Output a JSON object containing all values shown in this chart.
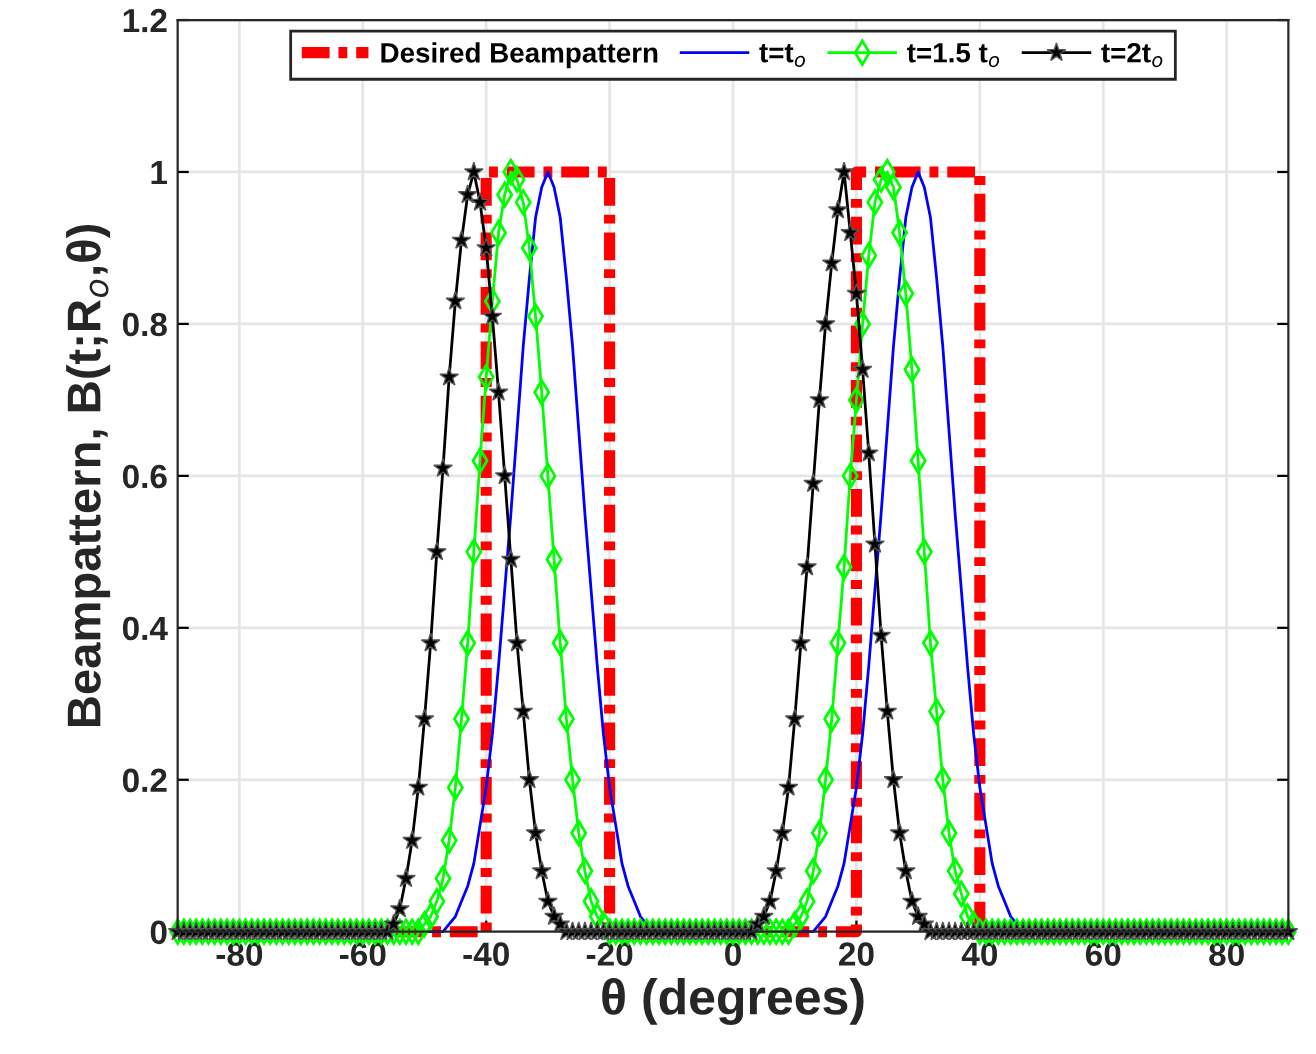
{
  "chart_data": {
    "type": "line",
    "xlabel": "θ (degrees)",
    "ylabel": "Beampattern, B(t;R$_{o}$,θ)",
    "xlim": [
      -90,
      90
    ],
    "ylim": [
      0,
      1.2
    ],
    "xticks": [
      -80,
      -60,
      -40,
      -20,
      0,
      20,
      40,
      60,
      80
    ],
    "yticks": [
      0,
      {
        "value": 0.2,
        "label": "0.2"
      },
      {
        "value": 0.4,
        "label": "0.4"
      },
      {
        "value": 0.6,
        "label": "0.6"
      },
      {
        "value": 0.8,
        "label": "0.8"
      },
      1,
      {
        "value": 1.2,
        "label": "1.2"
      }
    ],
    "grid": true,
    "legend": "top",
    "x": [
      -90,
      -89,
      -88,
      -87,
      -86,
      -85,
      -84,
      -83,
      -82,
      -81,
      -80,
      -79,
      -78,
      -77,
      -76,
      -75,
      -74,
      -73,
      -72,
      -71,
      -70,
      -69,
      -68,
      -67,
      -66,
      -65,
      -64,
      -63,
      -62,
      -61,
      -60,
      -59,
      -58,
      -57,
      -56,
      -55,
      -54,
      -53,
      -52,
      -51,
      -50,
      -49,
      -48,
      -47,
      -46,
      -45,
      -44,
      -43,
      -42,
      -41,
      -40,
      -39,
      -38,
      -37,
      -36,
      -35,
      -34,
      -33,
      -32,
      -31,
      -30,
      -29,
      -28,
      -27,
      -26,
      -25,
      -24,
      -23,
      -22,
      -21,
      -20,
      -19,
      -18,
      -17,
      -16,
      -15,
      -14,
      -13,
      -12,
      -11,
      -10,
      -9,
      -8,
      -7,
      -6,
      -5,
      -4,
      -3,
      -2,
      -1,
      0,
      1,
      2,
      3,
      4,
      5,
      6,
      7,
      8,
      9,
      10,
      11,
      12,
      13,
      14,
      15,
      16,
      17,
      18,
      19,
      20,
      21,
      22,
      23,
      24,
      25,
      26,
      27,
      28,
      29,
      30,
      31,
      32,
      33,
      34,
      35,
      36,
      37,
      38,
      39,
      40,
      41,
      42,
      43,
      44,
      45,
      46,
      47,
      48,
      49,
      50,
      51,
      52,
      53,
      54,
      55,
      56,
      57,
      58,
      59,
      60,
      61,
      62,
      63,
      64,
      65,
      66,
      67,
      68,
      69,
      70,
      71,
      72,
      73,
      74,
      75,
      76,
      77,
      78,
      79,
      80,
      81,
      82,
      83,
      84,
      85,
      86,
      87,
      88,
      89,
      90
    ],
    "series": [
      {
        "name": "Desired Beampattern",
        "color": "#ff0000",
        "line_style": "dashed",
        "marker": "none",
        "x": [
          -90,
          -40,
          -40,
          -20,
          -20,
          20,
          20,
          40,
          40,
          90
        ],
        "values": [
          0,
          0,
          1,
          1,
          0,
          0,
          1,
          1,
          0,
          0
        ]
      },
      {
        "name": "t=t$_{o}$",
        "color": "#0000ff",
        "line_style": "solid",
        "marker": "none",
        "x": [
          -90,
          -47,
          -46,
          -45,
          -44,
          -43,
          -42,
          -41,
          -40,
          -39,
          -38,
          -37,
          -36,
          -35,
          -34,
          -33,
          -32,
          -31,
          -30,
          -29,
          -28,
          -27,
          -26,
          -25,
          -24,
          -23,
          -22,
          -21,
          -20,
          -19,
          -18,
          -17,
          -16,
          -15,
          -14,
          -13,
          13,
          14,
          15,
          16,
          17,
          18,
          19,
          20,
          21,
          22,
          23,
          24,
          25,
          26,
          27,
          28,
          29,
          30,
          31,
          32,
          33,
          34,
          35,
          36,
          37,
          38,
          39,
          40,
          41,
          42,
          43,
          44,
          45,
          46,
          47,
          90
        ],
        "values": [
          0,
          0,
          0.01,
          0.02,
          0.04,
          0.06,
          0.09,
          0.14,
          0.19,
          0.26,
          0.35,
          0.45,
          0.55,
          0.66,
          0.77,
          0.86,
          0.94,
          0.98,
          1,
          0.98,
          0.94,
          0.86,
          0.77,
          0.66,
          0.55,
          0.45,
          0.35,
          0.26,
          0.19,
          0.14,
          0.09,
          0.06,
          0.04,
          0.02,
          0.01,
          0,
          0,
          0.01,
          0.02,
          0.04,
          0.06,
          0.09,
          0.14,
          0.19,
          0.26,
          0.35,
          0.45,
          0.55,
          0.66,
          0.77,
          0.86,
          0.94,
          0.98,
          1,
          0.98,
          0.94,
          0.86,
          0.77,
          0.66,
          0.55,
          0.45,
          0.35,
          0.26,
          0.19,
          0.14,
          0.09,
          0.06,
          0.04,
          0.02,
          0.01,
          0,
          0
        ]
      },
      {
        "name": "t=1.5 t$_{o}$",
        "color": "#00ff00",
        "line_style": "solid",
        "marker": "diamond",
        "values": [
          0,
          0,
          0,
          0,
          0,
          0,
          0,
          0,
          0,
          0,
          0,
          0,
          0,
          0,
          0,
          0,
          0,
          0,
          0,
          0,
          0,
          0,
          0,
          0,
          0,
          0,
          0,
          0,
          0,
          0,
          0,
          0,
          0,
          0,
          0,
          0,
          0,
          0,
          0,
          0,
          0.01,
          0.02,
          0.04,
          0.07,
          0.12,
          0.19,
          0.28,
          0.38,
          0.5,
          0.62,
          0.73,
          0.83,
          0.92,
          0.97,
          1,
          0.99,
          0.96,
          0.9,
          0.81,
          0.71,
          0.6,
          0.49,
          0.38,
          0.28,
          0.2,
          0.13,
          0.08,
          0.04,
          0.02,
          0.01,
          0,
          0,
          0,
          0,
          0,
          0,
          0,
          0,
          0,
          0,
          0,
          0,
          0,
          0,
          0,
          0,
          0,
          0,
          0,
          0,
          0,
          0,
          0,
          0,
          0,
          0,
          0,
          0,
          0,
          0,
          0.01,
          0.02,
          0.04,
          0.08,
          0.13,
          0.2,
          0.28,
          0.38,
          0.48,
          0.6,
          0.7,
          0.8,
          0.89,
          0.96,
          0.99,
          1,
          0.98,
          0.92,
          0.84,
          0.74,
          0.62,
          0.5,
          0.38,
          0.29,
          0.2,
          0.13,
          0.08,
          0.05,
          0.02,
          0.01,
          0,
          0,
          0,
          0,
          0,
          0,
          0,
          0,
          0,
          0,
          0,
          0,
          0,
          0,
          0,
          0,
          0,
          0,
          0,
          0,
          0,
          0,
          0,
          0,
          0,
          0,
          0,
          0,
          0,
          0,
          0,
          0,
          0,
          0,
          0,
          0,
          0,
          0,
          0,
          0,
          0,
          0,
          0,
          0,
          0,
          0,
          0,
          0,
          0,
          0,
          0
        ]
      },
      {
        "name": "t=2t$_{o}$",
        "color": "#000000",
        "line_style": "solid",
        "marker": "star",
        "values": [
          0,
          0,
          0,
          0,
          0,
          0,
          0,
          0,
          0,
          0,
          0,
          0,
          0,
          0,
          0,
          0,
          0,
          0,
          0,
          0,
          0,
          0,
          0,
          0,
          0,
          0,
          0,
          0,
          0,
          0,
          0,
          0,
          0,
          0,
          0,
          0.01,
          0.03,
          0.07,
          0.12,
          0.19,
          0.28,
          0.38,
          0.5,
          0.61,
          0.73,
          0.83,
          0.91,
          0.97,
          1,
          0.96,
          0.9,
          0.81,
          0.71,
          0.6,
          0.49,
          0.38,
          0.29,
          0.2,
          0.13,
          0.08,
          0.04,
          0.02,
          0.01,
          0,
          0,
          0,
          0,
          0,
          0,
          0,
          0,
          0,
          0,
          0,
          0,
          0,
          0,
          0,
          0,
          0,
          0,
          0,
          0,
          0,
          0,
          0,
          0,
          0,
          0,
          0,
          0,
          0,
          0,
          0,
          0.01,
          0.02,
          0.04,
          0.08,
          0.13,
          0.19,
          0.28,
          0.38,
          0.48,
          0.59,
          0.7,
          0.8,
          0.88,
          0.95,
          1,
          0.92,
          0.84,
          0.74,
          0.63,
          0.51,
          0.39,
          0.29,
          0.2,
          0.13,
          0.08,
          0.04,
          0.02,
          0.01,
          0,
          0,
          0,
          0,
          0,
          0,
          0,
          0,
          0,
          0,
          0,
          0,
          0,
          0,
          0,
          0,
          0,
          0,
          0,
          0,
          0,
          0,
          0,
          0,
          0,
          0,
          0,
          0,
          0,
          0,
          0,
          0,
          0,
          0,
          0,
          0,
          0,
          0,
          0,
          0,
          0,
          0,
          0,
          0,
          0,
          0,
          0,
          0,
          0,
          0,
          0,
          0,
          0,
          0,
          0,
          0,
          0,
          0,
          0
        ]
      }
    ]
  }
}
